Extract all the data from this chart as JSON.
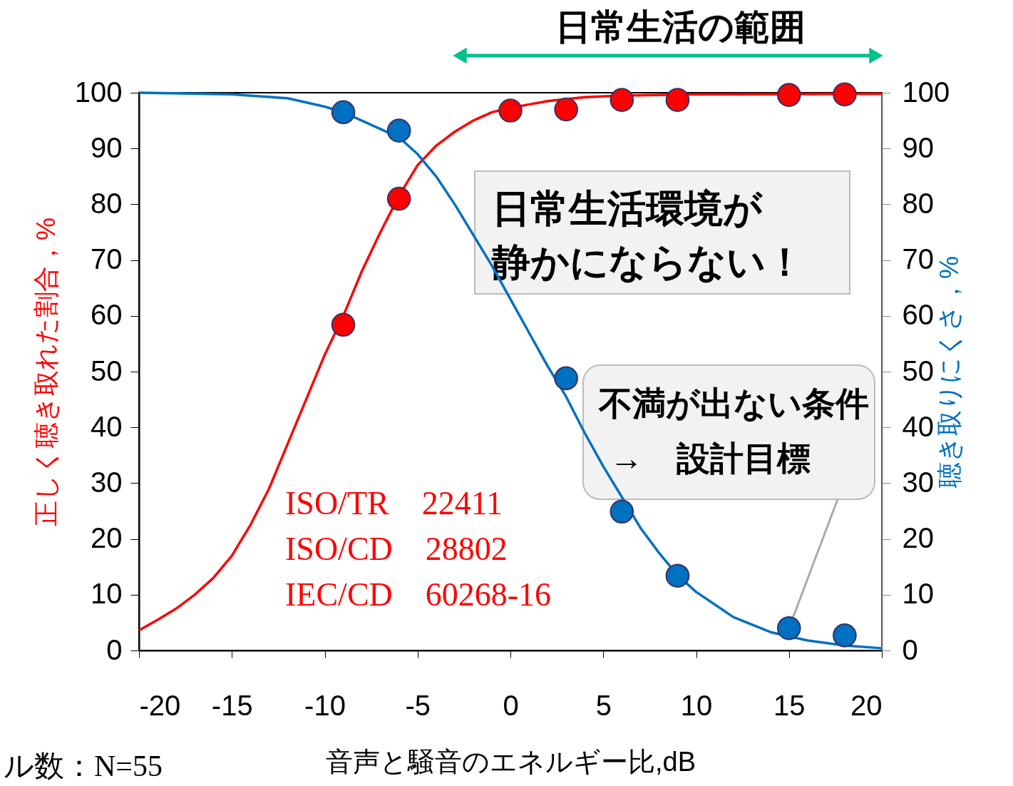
{
  "chart_data": {
    "type": "line",
    "xlabel": "音声と騒音のエネルギー比,dB",
    "ylabel": "正しく聴き取れた割合，%",
    "y2label": "聴き取りにくさ，%",
    "xlim": [
      -20,
      20
    ],
    "xticks": [
      -20,
      -15,
      -10,
      -5,
      0,
      5,
      10,
      15,
      20
    ],
    "ylim": [
      0,
      100
    ],
    "yticks": [
      0,
      10,
      20,
      30,
      40,
      50,
      60,
      70,
      80,
      90,
      100
    ],
    "y2lim": [
      0,
      100
    ],
    "y2ticks": [
      0,
      10,
      20,
      30,
      40,
      50,
      60,
      70,
      80,
      90,
      100
    ],
    "grid": false,
    "series": [
      {
        "color": "#ff0000",
        "x": [
          -20,
          -19,
          -18,
          -17,
          -16,
          -15,
          -14,
          -13,
          -12,
          -11,
          -10,
          -9,
          -8,
          -7,
          -6,
          -5,
          -4,
          -3,
          -2,
          -1,
          0,
          2,
          4,
          6,
          10,
          20
        ],
        "values": [
          3.6,
          5.5,
          7.5,
          10,
          13,
          17,
          22.5,
          29,
          37,
          45,
          53,
          60,
          68,
          75,
          81.5,
          87,
          90.5,
          93,
          95,
          96.5,
          97.3,
          98.5,
          99.2,
          99.5,
          99.7,
          99.8
        ]
      },
      {
        "type": "scatter",
        "marker": "circle",
        "color": "#ff0000",
        "x": [
          -9,
          -6,
          0,
          3,
          6,
          9,
          15,
          18
        ],
        "values": [
          58.4,
          81,
          96.8,
          97,
          98.7,
          98.7,
          99.6,
          99.7
        ]
      },
      {
        "color": "#0070c0",
        "axis": "y2",
        "x": [
          -20,
          -15,
          -12,
          -10,
          -9,
          -8,
          -6,
          -5,
          -4,
          -3,
          -2,
          -1,
          0,
          1,
          2,
          3,
          4,
          5,
          6,
          7,
          8,
          9,
          10,
          12,
          14,
          16,
          18,
          20
        ],
        "values": [
          100,
          99.7,
          99,
          97.5,
          96.5,
          95,
          92,
          89,
          85,
          80,
          74.5,
          69,
          63,
          57,
          51,
          45.5,
          39,
          33,
          27.5,
          22,
          17.5,
          13.5,
          10.5,
          6,
          3.3,
          1.8,
          0.9,
          0.4
        ]
      },
      {
        "type": "scatter",
        "marker": "circle",
        "color": "#0070c0",
        "axis": "y2",
        "x": [
          -9,
          -6,
          3,
          6,
          9,
          15,
          18
        ],
        "values": [
          96.5,
          93.2,
          48.8,
          24.9,
          13.4,
          4,
          2.7
        ]
      }
    ],
    "annotations": [
      "日常生活の範囲",
      "ISO/TR　22411",
      "ISO/CD　28802",
      "IEC/CD　60268-16",
      "日常生活環境が",
      "静かにならない！",
      "不満が出ない条件",
      {
        "text": "→　設計目標",
        "x": 15,
        "y": 4
      },
      "ル数：N=55"
    ]
  }
}
